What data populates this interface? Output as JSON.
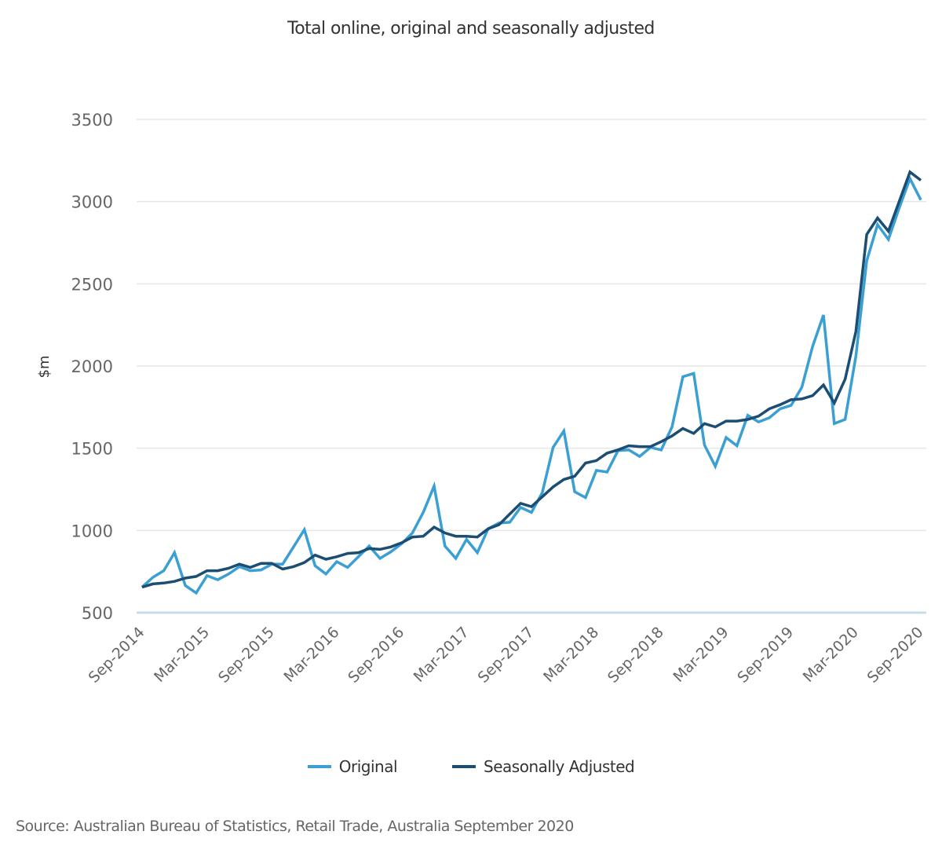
{
  "chart_data": {
    "type": "line",
    "title": "Total online, original and seasonally adjusted",
    "xlabel": "",
    "ylabel": "$m",
    "ylim": [
      500,
      3500
    ],
    "yticks": [
      500,
      1000,
      1500,
      2000,
      2500,
      3000,
      3500
    ],
    "grid": true,
    "legend_position": "bottom-center",
    "x": [
      "Sep-2014",
      "Oct-2014",
      "Nov-2014",
      "Dec-2014",
      "Jan-2015",
      "Feb-2015",
      "Mar-2015",
      "Apr-2015",
      "May-2015",
      "Jun-2015",
      "Jul-2015",
      "Aug-2015",
      "Sep-2015",
      "Oct-2015",
      "Nov-2015",
      "Dec-2015",
      "Jan-2016",
      "Feb-2016",
      "Mar-2016",
      "Apr-2016",
      "May-2016",
      "Jun-2016",
      "Jul-2016",
      "Aug-2016",
      "Sep-2016",
      "Oct-2016",
      "Nov-2016",
      "Dec-2016",
      "Jan-2017",
      "Feb-2017",
      "Mar-2017",
      "Apr-2017",
      "May-2017",
      "Jun-2017",
      "Jul-2017",
      "Aug-2017",
      "Sep-2017",
      "Oct-2017",
      "Nov-2017",
      "Dec-2017",
      "Jan-2018",
      "Feb-2018",
      "Mar-2018",
      "Apr-2018",
      "May-2018",
      "Jun-2018",
      "Jul-2018",
      "Aug-2018",
      "Sep-2018",
      "Oct-2018",
      "Nov-2018",
      "Dec-2018",
      "Jan-2019",
      "Feb-2019",
      "Mar-2019",
      "Apr-2019",
      "May-2019",
      "Jun-2019",
      "Jul-2019",
      "Aug-2019",
      "Sep-2019",
      "Oct-2019",
      "Nov-2019",
      "Dec-2019",
      "Jan-2020",
      "Feb-2020",
      "Mar-2020",
      "Apr-2020",
      "May-2020",
      "Jun-2020",
      "Jul-2020",
      "Aug-2020",
      "Sep-2020"
    ],
    "xtick_labels": [
      "Sep-2014",
      "Mar-2015",
      "Sep-2015",
      "Mar-2016",
      "Sep-2016",
      "Mar-2017",
      "Sep-2017",
      "Mar-2018",
      "Sep-2018",
      "Mar-2019",
      "Sep-2019",
      "Mar-2020",
      "Sep-2020"
    ],
    "series": [
      {
        "name": "Original",
        "color": "#3a9fd3",
        "values": [
          655,
          715,
          755,
          865,
          665,
          620,
          725,
          700,
          735,
          780,
          755,
          760,
          795,
          795,
          900,
          1005,
          785,
          735,
          810,
          775,
          840,
          905,
          830,
          870,
          920,
          985,
          1110,
          1270,
          905,
          830,
          945,
          865,
          1010,
          1045,
          1050,
          1140,
          1110,
          1230,
          1505,
          1605,
          1235,
          1200,
          1365,
          1355,
          1485,
          1490,
          1450,
          1505,
          1490,
          1630,
          1935,
          1955,
          1520,
          1390,
          1565,
          1515,
          1700,
          1660,
          1685,
          1740,
          1760,
          1870,
          2120,
          2310,
          1650,
          1675,
          2060,
          2640,
          2860,
          2770,
          2960,
          3140,
          3010
        ]
      },
      {
        "name": "Seasonally Adjusted",
        "color": "#1b4e72",
        "values": [
          655,
          675,
          680,
          690,
          710,
          720,
          755,
          755,
          770,
          795,
          775,
          800,
          800,
          765,
          780,
          805,
          850,
          825,
          840,
          860,
          865,
          890,
          885,
          900,
          925,
          960,
          965,
          1020,
          985,
          965,
          965,
          960,
          1010,
          1035,
          1100,
          1165,
          1145,
          1205,
          1265,
          1310,
          1330,
          1410,
          1425,
          1470,
          1490,
          1515,
          1510,
          1510,
          1540,
          1575,
          1620,
          1590,
          1650,
          1630,
          1665,
          1665,
          1675,
          1695,
          1740,
          1765,
          1795,
          1800,
          1820,
          1885,
          1775,
          1920,
          2210,
          2800,
          2900,
          2820,
          3000,
          3180,
          3130
        ]
      }
    ]
  },
  "source": "Source: Australian Bureau of Statistics, Retail Trade, Australia September 2020",
  "colors": {
    "grid": "#e6e6e6",
    "axis_baseline": "#c7dceb",
    "text_primary": "#333333",
    "text_secondary": "#666666"
  }
}
